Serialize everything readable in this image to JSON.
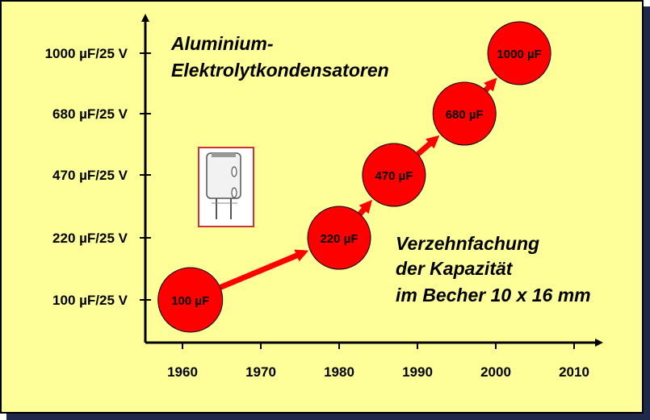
{
  "chart_data": {
    "type": "scatter",
    "title_lines": [
      "Aluminium-",
      "Elektrolytkondensatoren"
    ],
    "annotation_lines": [
      "Verzehnfachung",
      "der Kapazität",
      "im Becher 10 x 16 mm"
    ],
    "x_ticks": [
      1960,
      1970,
      1980,
      1990,
      2000,
      2010
    ],
    "y_categories": [
      "100 µF/25 V",
      "220 µF/25 V",
      "470 µF/25 V",
      "680 µF/25 V",
      "1000 µF/25 V"
    ],
    "points": [
      {
        "year": 1961,
        "capacitance_uF": 100,
        "label": "100 µF"
      },
      {
        "year": 1980,
        "capacitance_uF": 220,
        "label": "220 µF"
      },
      {
        "year": 1987,
        "capacitance_uF": 470,
        "label": "470 µF"
      },
      {
        "year": 1996,
        "capacitance_uF": 680,
        "label": "680 µF"
      },
      {
        "year": 2003,
        "capacitance_uF": 1000,
        "label": "1000 µF"
      }
    ],
    "grid": false
  },
  "colors": {
    "background": "#ffff99",
    "bubble_fill": "#ff0000",
    "arrow": "#ff0000",
    "axis": "#000000",
    "icon_border": "#cc3333"
  },
  "icons": {
    "capacitor": "capacitor-icon"
  }
}
